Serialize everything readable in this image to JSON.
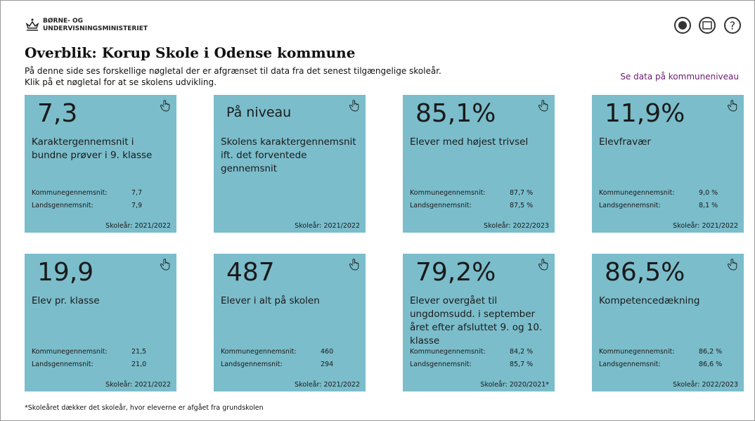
{
  "header": {
    "logo_line1": "BØRNE- OG",
    "logo_line2": "UNDERVISNINGSMINISTERIET"
  },
  "title": "Overblik: Korup Skole i Odense kommune",
  "description": [
    "På denne side ses forskellige nøgletal der er afgrænset til data fra det senest tilgængelige skoleår.",
    "Klik på et nøgletal for at se skolens udvikling."
  ],
  "link": "Se data på kommuneniveau",
  "cards": [
    {
      "value": "7,3",
      "label": "Karaktergennemsnit i bundne prøver i 9. klasse",
      "stats": [
        [
          "Kommunegennemsnit:",
          "7,7"
        ],
        [
          "Landsgennemsnit:",
          "7,9"
        ]
      ],
      "year": "Skoleår: 2021/2022"
    },
    {
      "value": "På niveau",
      "label": "Skolens karaktergennemsnit ift. det forventede gennemsnit",
      "stats": [],
      "year": "Skoleår: 2021/2022"
    },
    {
      "value": "85,1%",
      "label": "Elever med højest trivsel",
      "stats": [
        [
          "Kommunegennemsnit:",
          "87,7 %"
        ],
        [
          "Landsgennemsnit:",
          "87,5 %"
        ]
      ],
      "year": "Skoleår: 2022/2023"
    },
    {
      "value": "11,9%",
      "label": "Elevfravær",
      "stats": [
        [
          "Kommunegennemsnit:",
          "9,0 %"
        ],
        [
          "Landsgennemsnit:",
          "8,1 %"
        ]
      ],
      "year": "Skoleår: 2021/2022"
    },
    {
      "value": "19,9",
      "label": "Elev pr. klasse",
      "stats": [
        [
          "Kommunegennemsnit:",
          "21,5"
        ],
        [
          "Landsgennemsnit:",
          "21,0"
        ]
      ],
      "year": "Skoleår: 2021/2022"
    },
    {
      "value": "487",
      "label": "Elever i alt på skolen",
      "stats": [
        [
          "Kommunegennemsnit:",
          "460"
        ],
        [
          "Landsgennemsnit:",
          "294"
        ]
      ],
      "year": "Skoleår: 2021/2022"
    },
    {
      "value": "79,2%",
      "label": "Elever overgået til ungdomsudd. i september året efter afsluttet 9. og 10. klasse",
      "stats": [
        [
          "Kommunegennemsnit:",
          "84,2 %"
        ],
        [
          "Landsgennemsnit:",
          "85,7 %"
        ]
      ],
      "year": "Skoleår: 2020/2021*"
    },
    {
      "value": "86,5%",
      "label": "Kompetencedækning",
      "stats": [
        [
          "Kommunegennemsnit:",
          "86,2 %"
        ],
        [
          "Landsgennemsnit:",
          "86,6 %"
        ]
      ],
      "year": "Skoleår: 2022/2023"
    }
  ],
  "footnote": "*Skoleåret dækker det skoleår, hvor eleverne er afgået fra grundskolen"
}
